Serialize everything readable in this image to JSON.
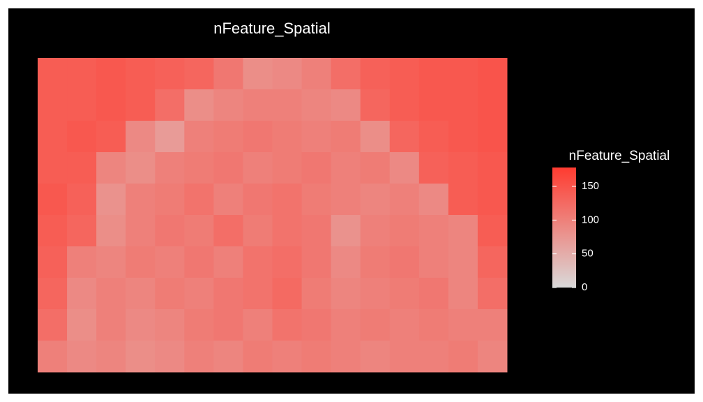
{
  "chart_data": {
    "type": "heatmap",
    "title": "nFeature_Spatial",
    "legend_title": "nFeature_Spatial",
    "low_color": "#d9d9d9",
    "high_color": "#ff3b30",
    "colorlim": [
      0,
      178
    ],
    "colorticks": [
      0,
      50,
      100,
      150
    ],
    "values": [
      [
        140,
        140,
        145,
        140,
        135,
        130,
        110,
        85,
        90,
        100,
        120,
        135,
        140,
        145,
        145,
        150
      ],
      [
        140,
        140,
        145,
        140,
        120,
        85,
        95,
        100,
        100,
        95,
        90,
        130,
        140,
        145,
        145,
        150
      ],
      [
        140,
        145,
        140,
        90,
        70,
        100,
        105,
        110,
        105,
        100,
        105,
        85,
        130,
        140,
        145,
        150
      ],
      [
        140,
        140,
        95,
        85,
        100,
        105,
        110,
        100,
        105,
        110,
        100,
        105,
        90,
        135,
        140,
        145
      ],
      [
        145,
        135,
        80,
        100,
        105,
        115,
        100,
        110,
        115,
        105,
        100,
        95,
        100,
        90,
        140,
        145
      ],
      [
        140,
        130,
        85,
        100,
        110,
        105,
        120,
        105,
        115,
        110,
        80,
        100,
        105,
        100,
        95,
        140
      ],
      [
        135,
        100,
        95,
        105,
        100,
        110,
        100,
        115,
        120,
        110,
        90,
        105,
        110,
        100,
        95,
        130
      ],
      [
        130,
        90,
        100,
        95,
        105,
        100,
        110,
        115,
        125,
        105,
        95,
        100,
        105,
        110,
        95,
        120
      ],
      [
        120,
        85,
        100,
        90,
        95,
        105,
        110,
        100,
        115,
        110,
        100,
        105,
        100,
        105,
        100,
        100
      ],
      [
        100,
        90,
        95,
        85,
        90,
        100,
        95,
        105,
        100,
        105,
        100,
        95,
        100,
        100,
        105,
        95
      ]
    ]
  }
}
